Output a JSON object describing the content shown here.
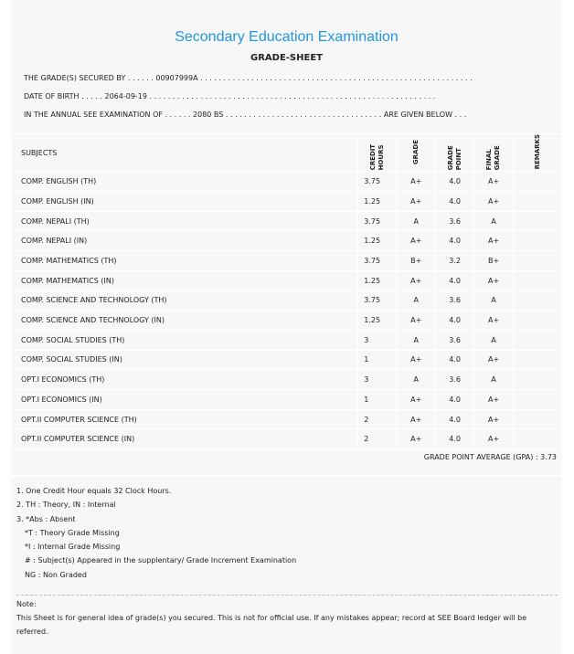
{
  "title": "Secondary Education Examination",
  "subtitle": "GRADE-SHEET",
  "info": {
    "secured_by": "THE GRADE(S) SECURED BY . . . . . . 00907999A . . . . . . . . . . . . . . . . . . . . . . . . . . . . . . . . . . . . . . . . . . . . . . . . . . . . . . . . . . .",
    "dob": "DATE OF BIRTH . . . . . 2064-09-19 . . . . . . . . . . . . . . . . . . . . . . . . . . . . . . . . . . . . . . . . . . . . . . . . . . . . . . . . . . . . . .",
    "exam": "IN THE ANNUAL SEE EXAMINATION OF . . . . . . 2080 BS . . . . . . . . . . . . . . . . . . . . . . . . . . . . . . . . . . ARE GIVEN BELOW . . ."
  },
  "table": {
    "headers": [
      "SUBJECTS",
      "CREDIT HOURS",
      "GRADE",
      "GRADE POINT",
      "FINAL GRADE",
      "REMARKS"
    ],
    "rows": [
      [
        "COMP. ENGLISH (TH)",
        "3.75",
        "A+",
        "4.0",
        "A+",
        ""
      ],
      [
        "COMP. ENGLISH (IN)",
        "1.25",
        "A+",
        "4.0",
        "A+",
        ""
      ],
      [
        "COMP. NEPALI (TH)",
        "3.75",
        "A",
        "3.6",
        "A",
        ""
      ],
      [
        "COMP. NEPALI (IN)",
        "1.25",
        "A+",
        "4.0",
        "A+",
        ""
      ],
      [
        "COMP. MATHEMATICS (TH)",
        "3.75",
        "B+",
        "3.2",
        "B+",
        ""
      ],
      [
        "COMP. MATHEMATICS (IN)",
        "1.25",
        "A+",
        "4.0",
        "A+",
        ""
      ],
      [
        "COMP. SCIENCE AND TECHNOLOGY (TH)",
        "3.75",
        "A",
        "3.6",
        "A",
        ""
      ],
      [
        "COMP. SCIENCE AND TECHNOLOGY (IN)",
        "1.25",
        "A+",
        "4.0",
        "A+",
        ""
      ],
      [
        "COMP. SOCIAL STUDIES (TH)",
        "3",
        "A",
        "3.6",
        "A",
        ""
      ],
      [
        "COMP. SOCIAL STUDIES (IN)",
        "1",
        "A+",
        "4.0",
        "A+",
        ""
      ],
      [
        "OPT.I ECONOMICS (TH)",
        "3",
        "A",
        "3.6",
        "A",
        ""
      ],
      [
        "OPT.I ECONOMICS (IN)",
        "1",
        "A+",
        "4.0",
        "A+",
        ""
      ],
      [
        "OPT.II COMPUTER SCIENCE (TH)",
        "2",
        "A+",
        "4.0",
        "A+",
        ""
      ],
      [
        "OPT.II COMPUTER SCIENCE (IN)",
        "2",
        "A+",
        "4.0",
        "A+",
        ""
      ]
    ]
  },
  "gpa": "GRADE POINT AVERAGE (GPA) : 3.73",
  "notes": [
    "1. One Credit Hour equals 32 Clock Hours.",
    "2. TH : Theory, IN : Internal",
    "3. *Abs : Absent",
    "*T : Theory Grade Missing",
    "*I : Internal Grade Missing",
    "# : Subject(s) Appeared in the supplentary/ Grade Increment Examination",
    "NG : Non Graded"
  ],
  "note_label": "Note:",
  "note_text": "This Sheet is for general idea of grade(s) you secured. This is not for official use. If any mistakes appear; record at SEE Board ledger will be referred."
}
